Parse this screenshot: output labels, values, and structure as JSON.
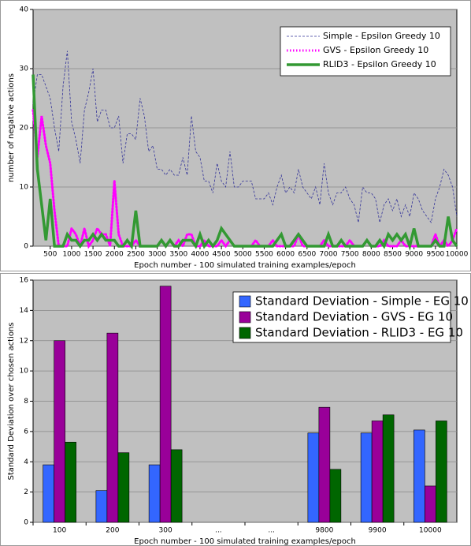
{
  "chart_data": [
    {
      "type": "line",
      "x_label": "Epoch number - 100 simulated training examples/epoch",
      "y_label": "number of negative actions",
      "x": [
        100,
        200,
        300,
        400,
        500,
        600,
        700,
        800,
        900,
        1000,
        1100,
        1200,
        1300,
        1400,
        1500,
        1600,
        1700,
        1800,
        1900,
        2000,
        2100,
        2200,
        2300,
        2400,
        2500,
        2600,
        2700,
        2800,
        2900,
        3000,
        3100,
        3200,
        3300,
        3400,
        3500,
        3600,
        3700,
        3800,
        3900,
        4000,
        4100,
        4200,
        4300,
        4400,
        4500,
        4600,
        4700,
        4800,
        4900,
        5000,
        5100,
        5200,
        5300,
        5400,
        5500,
        5600,
        5700,
        5800,
        5900,
        6000,
        6100,
        6200,
        6300,
        6400,
        6500,
        6600,
        6700,
        6800,
        6900,
        7000,
        7100,
        7200,
        7300,
        7400,
        7500,
        7600,
        7700,
        7800,
        7900,
        8000,
        8100,
        8200,
        8300,
        8400,
        8500,
        8600,
        8700,
        8800,
        8900,
        9000,
        9100,
        9200,
        9300,
        9400,
        9500,
        9600,
        9700,
        9800,
        9900,
        10000
      ],
      "series": [
        {
          "name": "Simple - Epsilon Greedy 10",
          "color": "#333399",
          "style": "dashed",
          "values": [
            24,
            29,
            29,
            27,
            25,
            20,
            16,
            27,
            33,
            21,
            18,
            14,
            23,
            26,
            30,
            21,
            23,
            23,
            20,
            20,
            22,
            14,
            19,
            19,
            18,
            25,
            22,
            16,
            17,
            13,
            13,
            12,
            13,
            12,
            12,
            15,
            12,
            22,
            16,
            15,
            11,
            11,
            9,
            14,
            11,
            10,
            16,
            10,
            10,
            11,
            11,
            11,
            8,
            8,
            8,
            9,
            7,
            10,
            12,
            9,
            10,
            9,
            13,
            10,
            9,
            8,
            10,
            7,
            14,
            9,
            7,
            9,
            9,
            10,
            8,
            7,
            4,
            10,
            9,
            9,
            8,
            4,
            7,
            8,
            6,
            8,
            5,
            7,
            5,
            9,
            8,
            6,
            5,
            4,
            8,
            10,
            13,
            12,
            10,
            5
          ]
        },
        {
          "name": "GVS - Epsilon Greedy 10",
          "color": "#ff00ff",
          "style": "dotted",
          "values": [
            23,
            15,
            22,
            17,
            14,
            6,
            0,
            0,
            0,
            3,
            2,
            0,
            3,
            0,
            1,
            3,
            2,
            2,
            0,
            11,
            2,
            0,
            0,
            0,
            1,
            0,
            0,
            0,
            0,
            0,
            1,
            0,
            1,
            0,
            1,
            0,
            2,
            2,
            0,
            0,
            1,
            0,
            0,
            0,
            1,
            0,
            1,
            0,
            0,
            0,
            0,
            0,
            1,
            0,
            0,
            0,
            1,
            0,
            0,
            0,
            0,
            0,
            2,
            0,
            0,
            0,
            0,
            0,
            1,
            0,
            0,
            0,
            0,
            0,
            1,
            0,
            0,
            0,
            1,
            0,
            0,
            0,
            1,
            0,
            0,
            0,
            1,
            0,
            0,
            0,
            0,
            0,
            0,
            0,
            2,
            0,
            1,
            0,
            1,
            3
          ]
        },
        {
          "name": "RLID3 - Epsilon Greedy 10",
          "color": "#339933",
          "style": "solid",
          "values": [
            29,
            13,
            7,
            1,
            8,
            0,
            0,
            0,
            2,
            1,
            1,
            0,
            1,
            1,
            2,
            1,
            2,
            1,
            1,
            1,
            0,
            0,
            1,
            0,
            6,
            0,
            0,
            0,
            0,
            0,
            1,
            0,
            1,
            0,
            0,
            1,
            1,
            1,
            0,
            2,
            0,
            1,
            0,
            1,
            3,
            2,
            1,
            0,
            0,
            0,
            0,
            0,
            0,
            0,
            0,
            0,
            0,
            1,
            2,
            0,
            0,
            1,
            2,
            1,
            0,
            0,
            0,
            0,
            0,
            2,
            0,
            0,
            1,
            0,
            0,
            0,
            0,
            0,
            1,
            0,
            0,
            1,
            0,
            2,
            1,
            2,
            1,
            2,
            0,
            3,
            0,
            0,
            0,
            0,
            1,
            0,
            0,
            5,
            1,
            0
          ]
        }
      ],
      "xlim": [
        100,
        10000
      ],
      "xticks": [
        500,
        1000,
        1500,
        2000,
        2500,
        3000,
        3500,
        4000,
        4500,
        5000,
        5500,
        6000,
        6500,
        7000,
        7500,
        8000,
        8500,
        9000,
        9500,
        10000
      ],
      "ylim": [
        0,
        40
      ],
      "yticks": [
        0,
        10,
        20,
        30,
        40
      ],
      "grid": true,
      "legend": "top-right"
    },
    {
      "type": "bar",
      "x_label": "Epoch number - 100 simulated training examples/epoch",
      "y_label": "Standard Deviation over chosen actions",
      "categories": [
        "100",
        "200",
        "300",
        "...",
        "...",
        "9800",
        "9900",
        "10000"
      ],
      "series": [
        {
          "name": "Standard Deviation - Simple - EG 10",
          "color": "#3366ff",
          "values": [
            3.8,
            2.1,
            3.8,
            null,
            null,
            5.9,
            5.9,
            6.1
          ]
        },
        {
          "name": "Standard Deviation - GVS - EG 10",
          "color": "#990099",
          "values": [
            12,
            12.5,
            15.6,
            null,
            null,
            7.6,
            6.7,
            2.4
          ]
        },
        {
          "name": "Standard Deviation - RLID3 - EG 10",
          "color": "#006600",
          "values": [
            5.3,
            4.6,
            4.8,
            null,
            null,
            3.5,
            7.1,
            6.7
          ]
        }
      ],
      "ylim": [
        0,
        16
      ],
      "yticks": [
        0,
        2,
        4,
        6,
        8,
        10,
        12,
        14,
        16
      ],
      "grid": true,
      "legend": "top-right"
    }
  ]
}
